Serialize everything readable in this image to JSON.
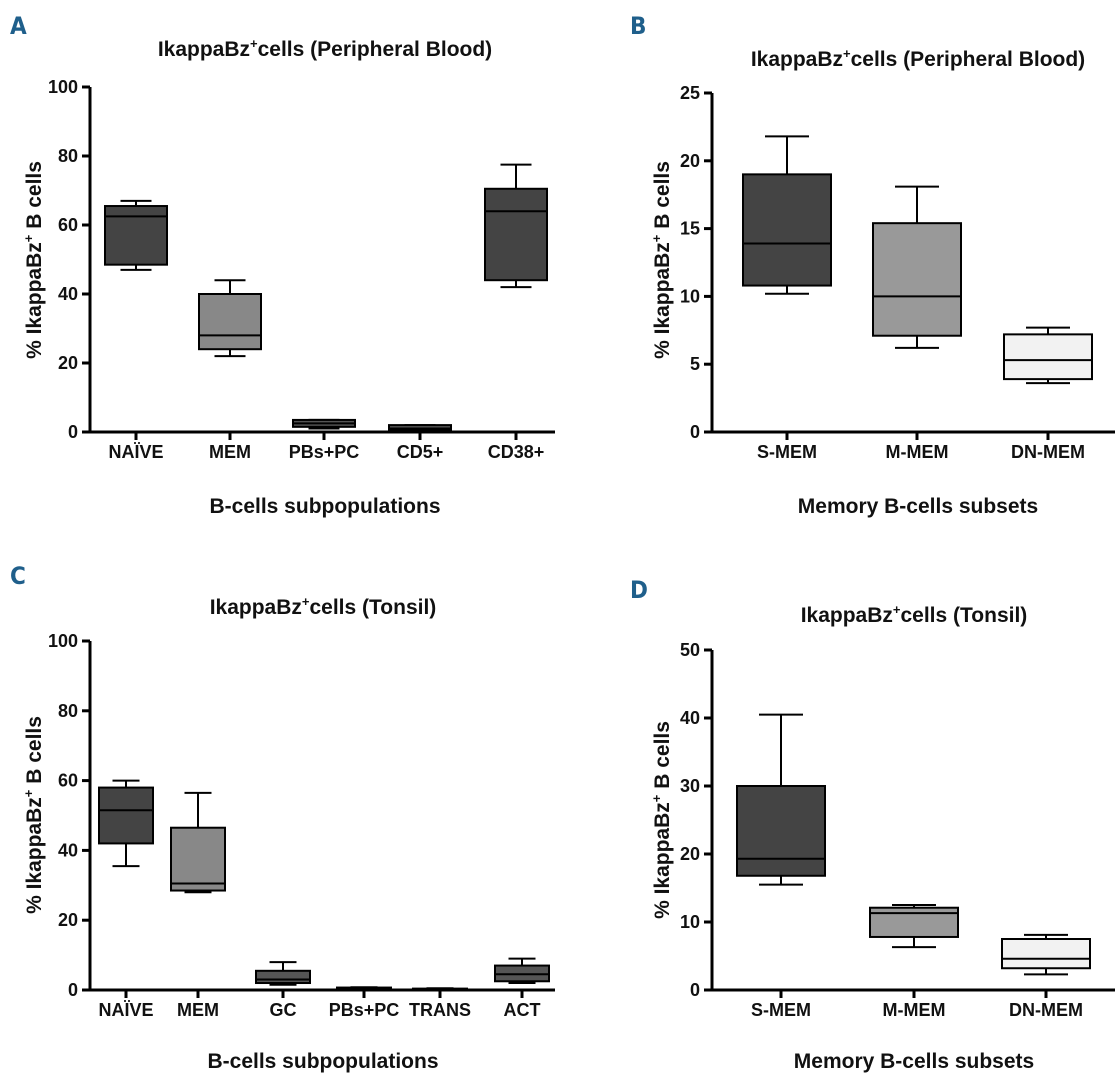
{
  "panels": [
    {
      "letter": "A",
      "title_main": "IkappaBz",
      "title_sup": "+",
      "title_rest": "cells (Peripheral Blood)",
      "ylabel_main": "% IkappaBz",
      "ylabel_sup": "+",
      "ylabel_rest": " B cells",
      "xlabel": "B-cells subpopulations"
    },
    {
      "letter": "B",
      "title_main": "IkappaBz",
      "title_sup": "+",
      "title_rest": "cells (Peripheral Blood)",
      "ylabel_main": "% IkappaBz",
      "ylabel_sup": "+",
      "ylabel_rest": " B cells",
      "xlabel": "Memory B-cells subsets"
    },
    {
      "letter": "C",
      "title_main": "IkappaBz",
      "title_sup": "+",
      "title_rest": "cells (Tonsil)",
      "ylabel_main": "% IkappaBz",
      "ylabel_sup": "+",
      "ylabel_rest": " B cells",
      "xlabel": "B-cells subpopulations"
    },
    {
      "letter": "D",
      "title_main": "IkappaBz",
      "title_sup": "+",
      "title_rest": "cells (Tonsil)",
      "ylabel_main": "% IkappaBz",
      "ylabel_sup": "+",
      "ylabel_rest": " B cells",
      "xlabel": "Memory B-cells subsets"
    }
  ],
  "chart_data": [
    {
      "type": "box",
      "ylim": [
        0,
        100
      ],
      "yticks": [
        0,
        20,
        40,
        60,
        80,
        100
      ],
      "categories": [
        "NAÏVE",
        "MEM",
        "PBs+PC",
        "CD5+",
        "CD38+"
      ],
      "boxes": [
        {
          "min": 47,
          "q1": 48.5,
          "median": 62.5,
          "q3": 65.5,
          "max": 67,
          "color": "#444444"
        },
        {
          "min": 22,
          "q1": 24,
          "median": 28,
          "q3": 40,
          "max": 44,
          "color": "#888888"
        },
        {
          "min": 1,
          "q1": 1.5,
          "median": 2.5,
          "q3": 3.5,
          "max": 3.5,
          "color": "#555555"
        },
        {
          "min": 0.3,
          "q1": 0.5,
          "median": 1,
          "q3": 2,
          "max": 2,
          "color": "#555555"
        },
        {
          "min": 42,
          "q1": 44,
          "median": 64,
          "q3": 70.5,
          "max": 77.5,
          "color": "#444444"
        }
      ]
    },
    {
      "type": "box",
      "ylim": [
        0,
        25
      ],
      "yticks": [
        0,
        5,
        10,
        15,
        20,
        25
      ],
      "categories": [
        "S-MEM",
        "M-MEM",
        "DN-MEM"
      ],
      "boxes": [
        {
          "min": 10.2,
          "q1": 10.8,
          "median": 13.9,
          "q3": 19,
          "max": 21.8,
          "color": "#444444"
        },
        {
          "min": 6.2,
          "q1": 7.1,
          "median": 10,
          "q3": 15.4,
          "max": 18.1,
          "color": "#999999"
        },
        {
          "min": 3.6,
          "q1": 3.9,
          "median": 5.3,
          "q3": 7.2,
          "max": 7.7,
          "color": "#f2f2f2"
        }
      ]
    },
    {
      "type": "box",
      "ylim": [
        0,
        100
      ],
      "yticks": [
        0,
        20,
        40,
        60,
        80,
        100
      ],
      "categories": [
        "NAÏVE",
        "MEM",
        "GC",
        "PBs+PC",
        "TRANS",
        "ACT"
      ],
      "boxes": [
        {
          "min": 35.5,
          "q1": 42,
          "median": 51.5,
          "q3": 58,
          "max": 60,
          "color": "#444444"
        },
        {
          "min": 28,
          "q1": 28.5,
          "median": 30.5,
          "q3": 46.5,
          "max": 56.5,
          "color": "#888888"
        },
        {
          "min": 1.5,
          "q1": 2,
          "median": 3,
          "q3": 5.5,
          "max": 8,
          "color": "#555555"
        },
        {
          "min": 0.2,
          "q1": 0.3,
          "median": 0.5,
          "q3": 0.7,
          "max": 0.8,
          "color": "#555555"
        },
        {
          "min": 0.1,
          "q1": 0.2,
          "median": 0.3,
          "q3": 0.4,
          "max": 0.5,
          "color": "#555555"
        },
        {
          "min": 2,
          "q1": 2.5,
          "median": 4.5,
          "q3": 7,
          "max": 9,
          "color": "#555555"
        }
      ]
    },
    {
      "type": "box",
      "ylim": [
        0,
        50
      ],
      "yticks": [
        0,
        10,
        20,
        30,
        40,
        50
      ],
      "categories": [
        "S-MEM",
        "M-MEM",
        "DN-MEM"
      ],
      "boxes": [
        {
          "min": 15.5,
          "q1": 16.8,
          "median": 19.3,
          "q3": 30,
          "max": 40.5,
          "color": "#444444"
        },
        {
          "min": 6.3,
          "q1": 7.8,
          "median": 11.3,
          "q3": 12.1,
          "max": 12.5,
          "color": "#999999"
        },
        {
          "min": 2.3,
          "q1": 3.2,
          "median": 4.6,
          "q3": 7.5,
          "max": 8.1,
          "color": "#f2f2f2"
        }
      ]
    }
  ]
}
